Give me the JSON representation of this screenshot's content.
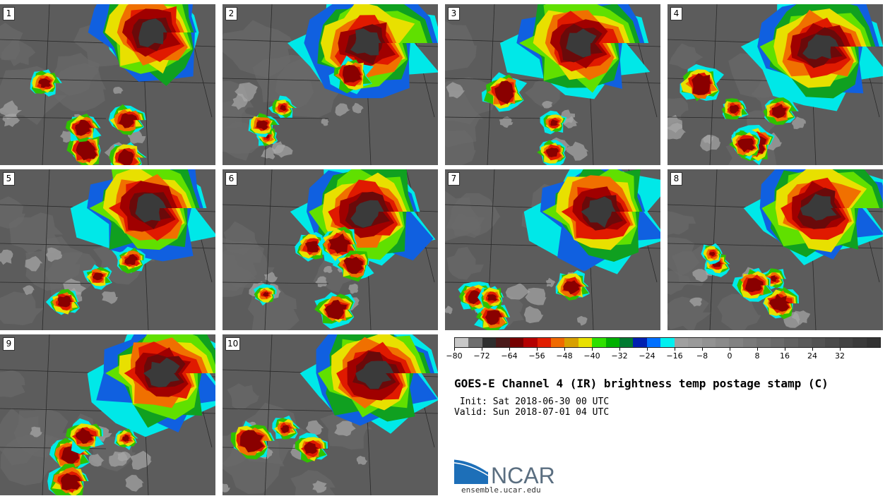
{
  "panels": [
    {
      "label": "1"
    },
    {
      "label": "2"
    },
    {
      "label": "3"
    },
    {
      "label": "4"
    },
    {
      "label": "5"
    },
    {
      "label": "6"
    },
    {
      "label": "7"
    },
    {
      "label": "8"
    },
    {
      "label": "9"
    },
    {
      "label": "10"
    }
  ],
  "colorbar": {
    "colors": [
      "#c8c8c8",
      "#6e6e6e",
      "#2e2e2e",
      "#4a1a1a",
      "#760000",
      "#b40000",
      "#e01e00",
      "#f06a00",
      "#d8a000",
      "#e8e000",
      "#30e000",
      "#00b000",
      "#007a30",
      "#0020b0",
      "#0070ff",
      "#00f0f0",
      "#a0a0a0",
      "#9a9a9a",
      "#929292",
      "#8a8a8a",
      "#828282",
      "#7a7a7a",
      "#727272",
      "#6a6a6a",
      "#626262",
      "#5a5a5a",
      "#525252",
      "#4a4a4a",
      "#424242",
      "#3a3a3a",
      "#323232"
    ],
    "tick_labels": [
      "−80",
      "−72",
      "−64",
      "−56",
      "−48",
      "−40",
      "−32",
      "−24",
      "−16",
      "−8",
      "0",
      "8",
      "16",
      "24",
      "32"
    ]
  },
  "title": "GOES-E Channel 4 (IR) brightness temp postage stamp (C)",
  "init": " Init: Sat 2018-06-30 00 UTC",
  "valid": "Valid: Sun 2018-07-01 04 UTC",
  "logo": {
    "text": "NCAR",
    "url": "ensemble.ucar.edu",
    "colors": {
      "blue": "#1d6fb8",
      "gray": "#5a6e80"
    }
  }
}
